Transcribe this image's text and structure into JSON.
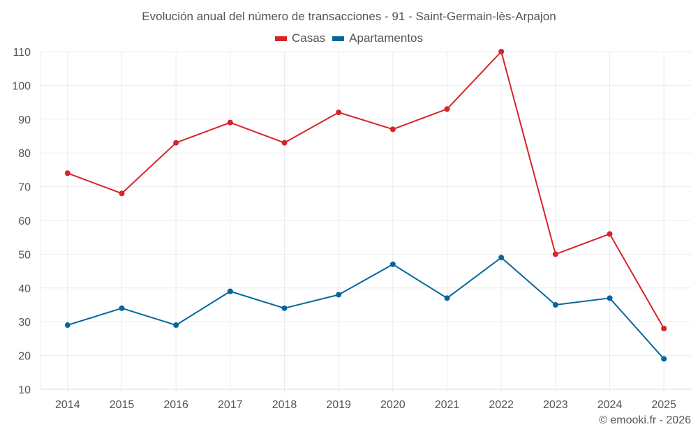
{
  "chart_data": {
    "type": "line",
    "title": "Evolución anual del número de transacciones - 91 - Saint-Germain-lès-Arpajon",
    "xlabel": "",
    "ylabel": "",
    "categories": [
      "2014",
      "2015",
      "2016",
      "2017",
      "2018",
      "2019",
      "2020",
      "2021",
      "2022",
      "2023",
      "2024",
      "2025"
    ],
    "ylim": [
      10,
      110
    ],
    "yticks": [
      10,
      20,
      30,
      40,
      50,
      60,
      70,
      80,
      90,
      100,
      110
    ],
    "grid": true,
    "legend_position": "top-center",
    "series": [
      {
        "name": "Casas",
        "color": "#d7242a",
        "values": [
          74,
          68,
          83,
          89,
          83,
          92,
          87,
          93,
          110,
          50,
          56,
          28
        ]
      },
      {
        "name": "Apartamentos",
        "color": "#05679e",
        "values": [
          29,
          34,
          29,
          39,
          34,
          38,
          47,
          37,
          49,
          35,
          37,
          19
        ]
      }
    ]
  },
  "credit": "© emooki.fr - 2026"
}
